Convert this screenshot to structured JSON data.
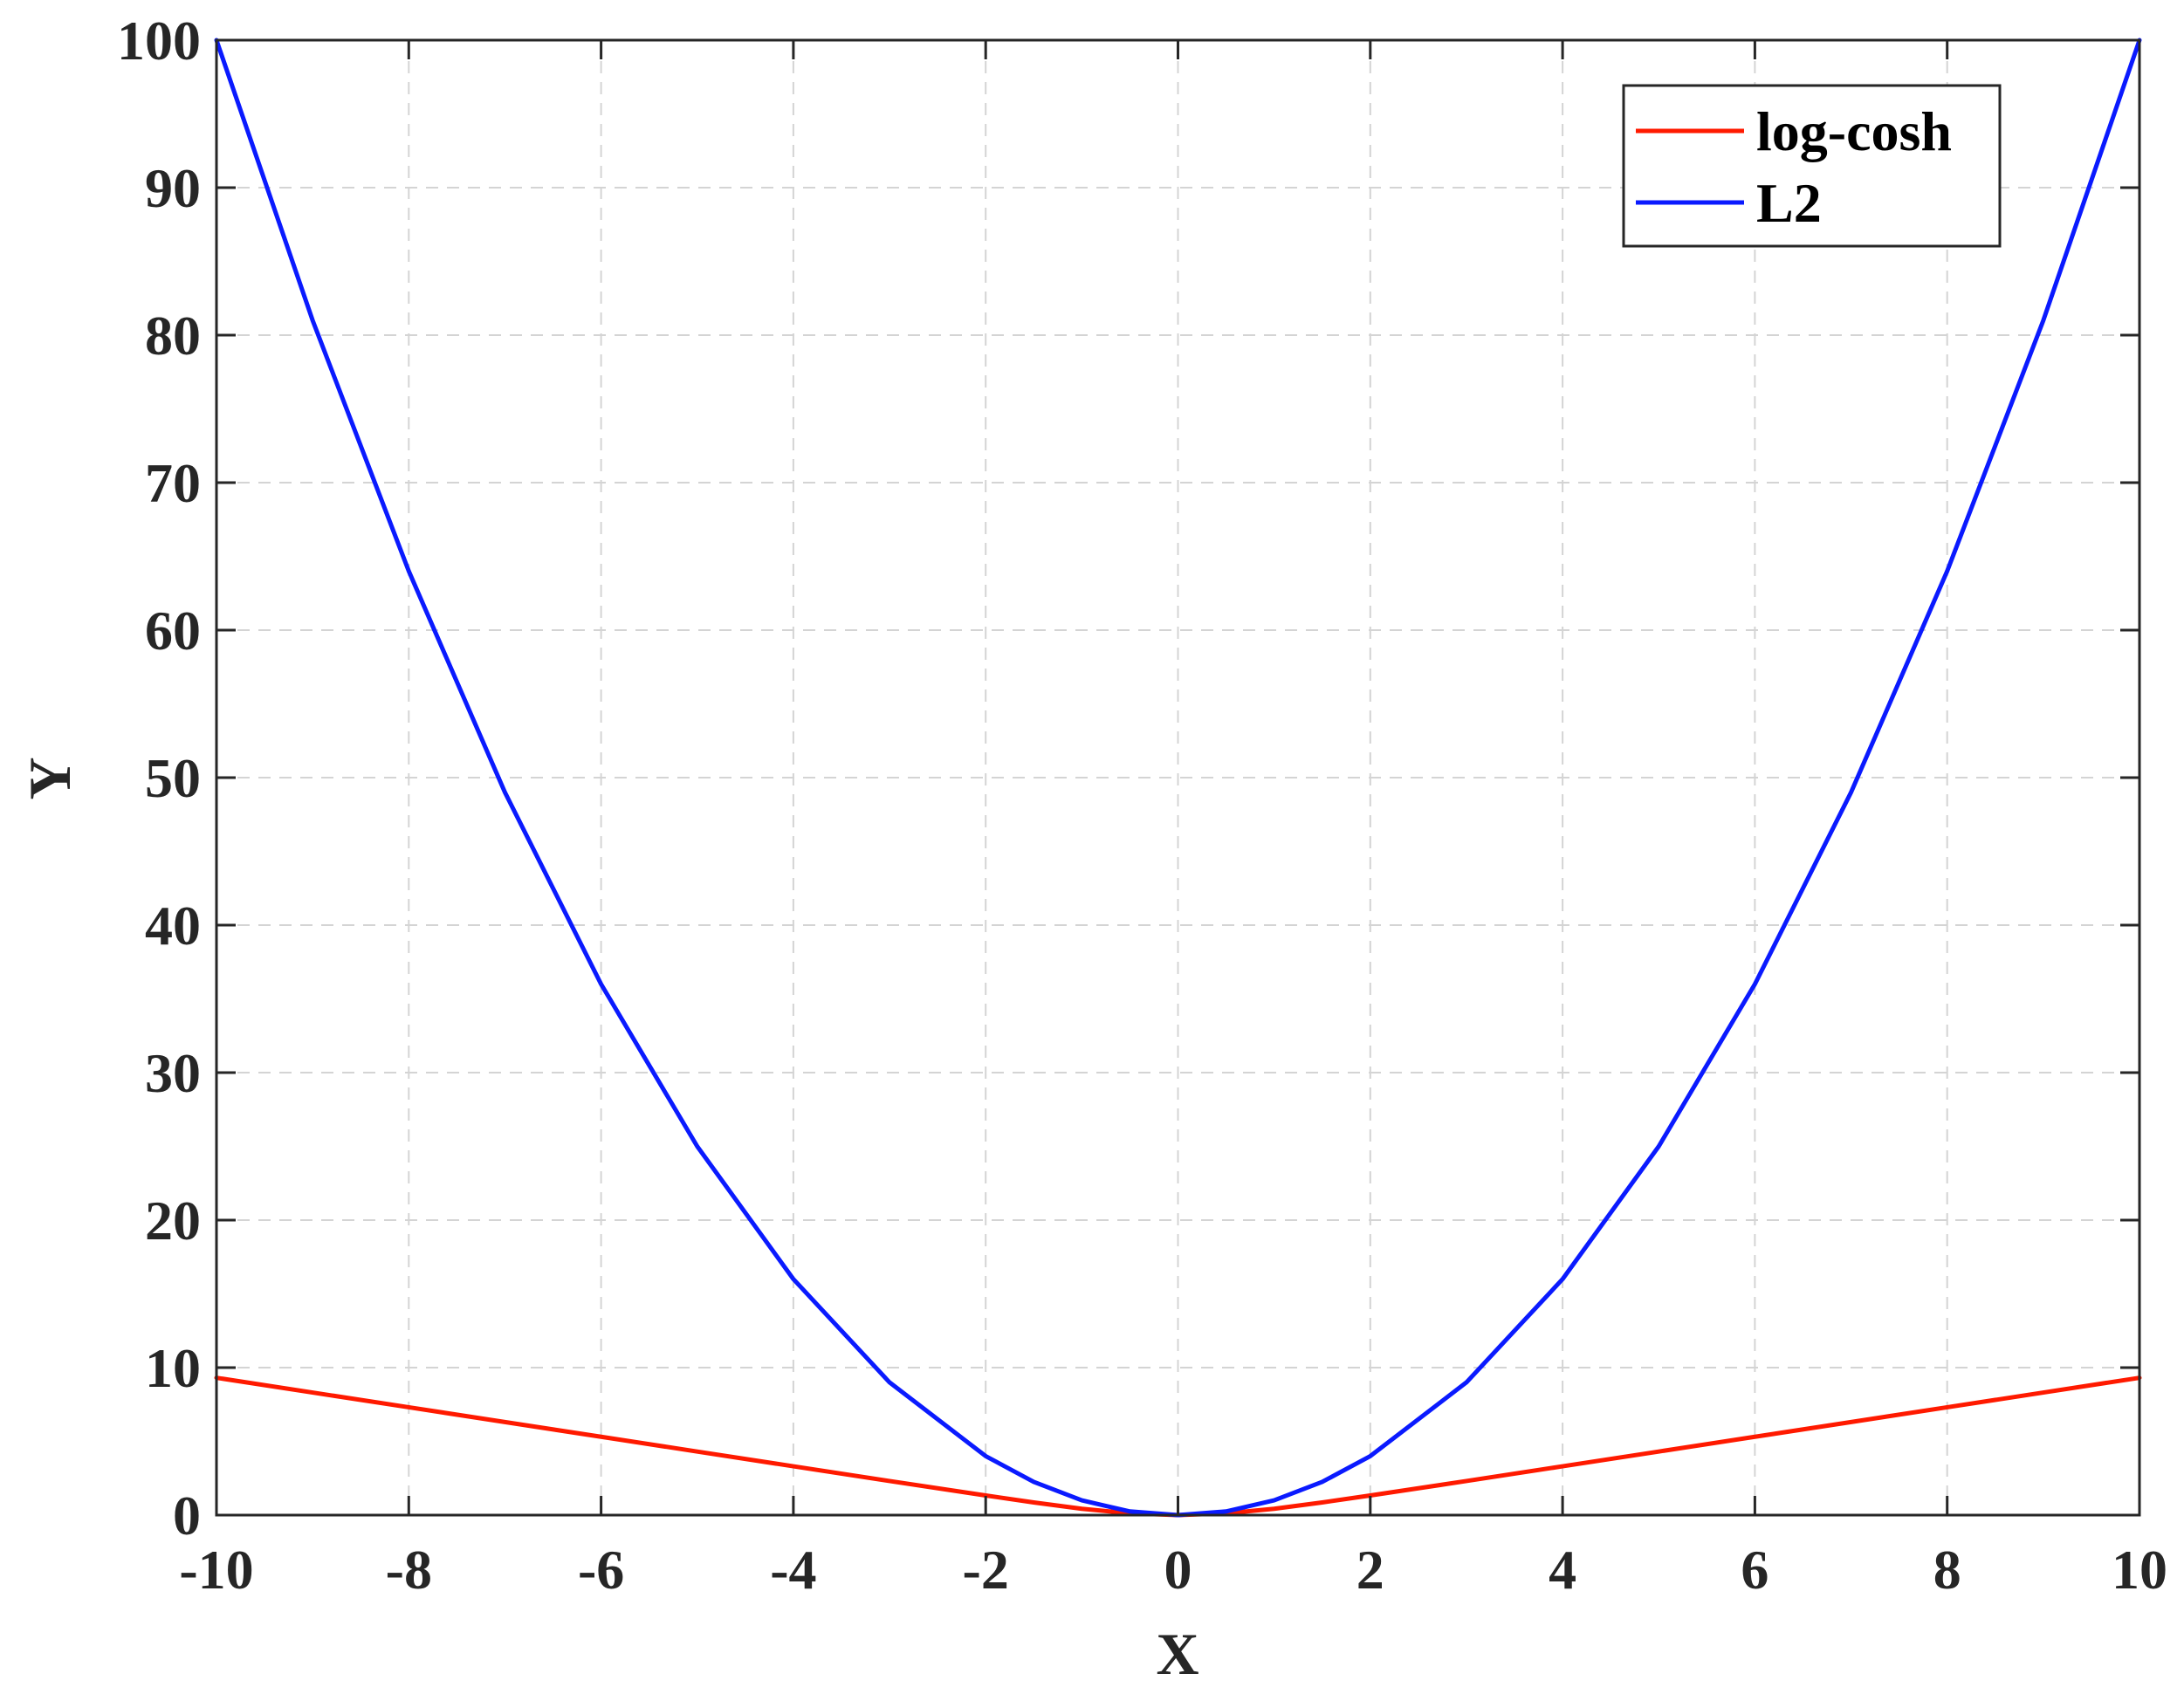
{
  "chart_data": {
    "type": "line",
    "title": "",
    "xlabel": "X",
    "ylabel": "Y",
    "xlim": [
      -10,
      10
    ],
    "ylim": [
      0,
      100
    ],
    "xticks": [
      -10,
      -8,
      -6,
      -4,
      -2,
      0,
      2,
      4,
      6,
      8,
      10
    ],
    "yticks": [
      0,
      10,
      20,
      30,
      40,
      50,
      60,
      70,
      80,
      90,
      100
    ],
    "xtick_labels": [
      "-10",
      "-8",
      "-6",
      "-4",
      "-2",
      "0",
      "2",
      "4",
      "6",
      "8",
      "10"
    ],
    "ytick_labels": [
      "0",
      "10",
      "20",
      "30",
      "40",
      "50",
      "60",
      "70",
      "80",
      "90",
      "100"
    ],
    "grid": true,
    "legend_position": "top-right",
    "x": [
      -10,
      -9,
      -8,
      -7,
      -6,
      -5,
      -4,
      -3,
      -2,
      -1.5,
      -1,
      -0.5,
      0,
      0.5,
      1,
      1.5,
      2,
      3,
      4,
      5,
      6,
      7,
      8,
      9,
      10
    ],
    "series": [
      {
        "name": "log-cosh",
        "color": "#ff1a00",
        "values": [
          9.31,
          8.31,
          7.31,
          6.31,
          5.31,
          4.31,
          3.31,
          2.31,
          1.33,
          0.86,
          0.43,
          0.12,
          0,
          0.12,
          0.43,
          0.86,
          1.33,
          2.31,
          3.31,
          4.31,
          5.31,
          6.31,
          7.31,
          8.31,
          9.31
        ]
      },
      {
        "name": "L2",
        "color": "#0a1aff",
        "values": [
          100,
          81,
          64,
          49,
          36,
          25,
          16,
          9,
          4,
          2.25,
          1,
          0.25,
          0,
          0.25,
          1,
          2.25,
          4,
          9,
          16,
          25,
          36,
          49,
          64,
          81,
          100
        ]
      }
    ]
  }
}
